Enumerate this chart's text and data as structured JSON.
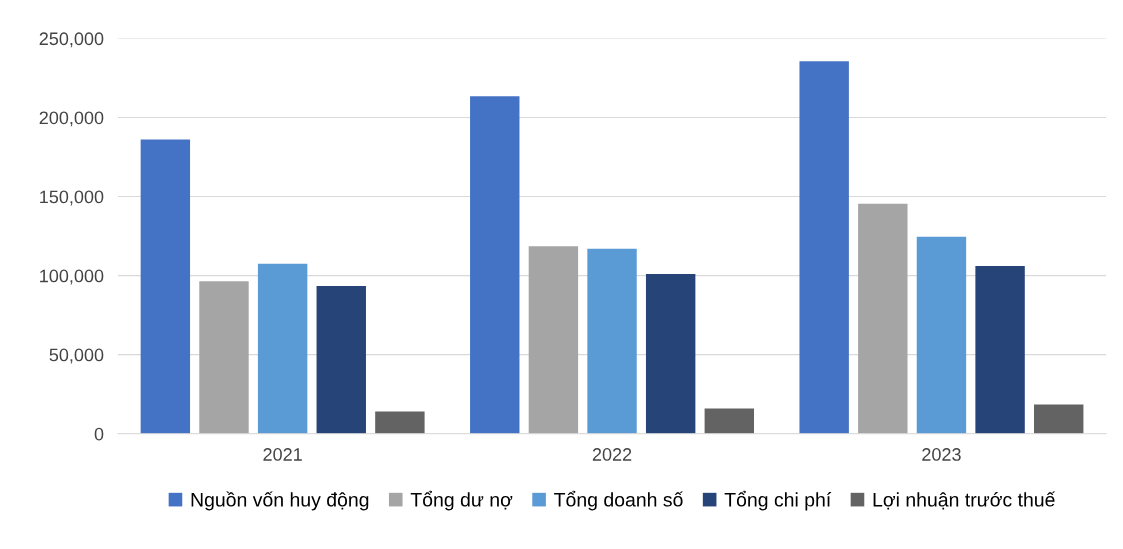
{
  "chart_data": {
    "type": "bar",
    "categories": [
      "2021",
      "2022",
      "2023"
    ],
    "series": [
      {
        "name": "Nguồn vốn huy động",
        "color": "#4472c4",
        "values": [
          186000,
          213500,
          235500
        ]
      },
      {
        "name": "Tổng dư nợ",
        "color": "#a5a5a5",
        "values": [
          96500,
          118500,
          145500
        ]
      },
      {
        "name": "Tổng doanh số",
        "color": "#5b9bd5",
        "values": [
          107500,
          117000,
          124500
        ]
      },
      {
        "name": "Tổng chi phí",
        "color": "#264478",
        "values": [
          93500,
          101000,
          106000
        ]
      },
      {
        "name": "Lợi nhuận trước thuế",
        "color": "#636363",
        "values": [
          14000,
          16000,
          18500
        ]
      }
    ],
    "ylim": [
      0,
      250000
    ],
    "yticks": [
      {
        "value": 0,
        "label": "0"
      },
      {
        "value": 50000,
        "label": "50,000"
      },
      {
        "value": 100000,
        "label": "100,000"
      },
      {
        "value": 150000,
        "label": "150,000"
      },
      {
        "value": 200000,
        "label": "200,000"
      },
      {
        "value": 250000,
        "label": "250,000"
      }
    ],
    "grid": "y",
    "legend": "bottom"
  }
}
